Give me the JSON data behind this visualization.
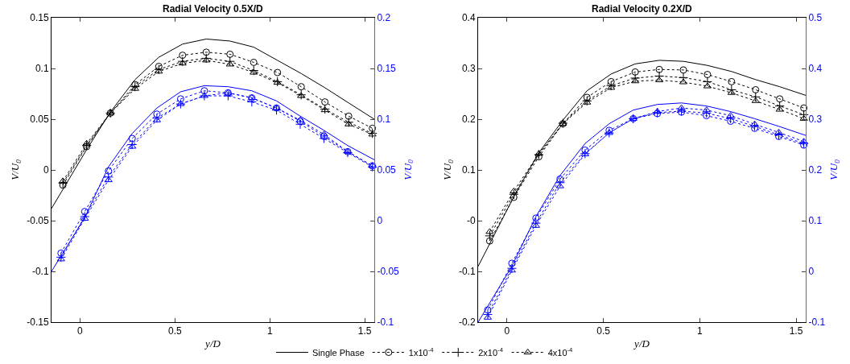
{
  "chart_data": [
    {
      "type": "line",
      "title": "Radial Velocity 0.5X/D",
      "xlabel": "y/D",
      "ylabel": "V/U$_{0}$",
      "y2label": "V/U$_{0}$",
      "legend": "bottom",
      "xlim": [
        -0.15,
        1.55
      ],
      "xticks": [
        0,
        0.5,
        1,
        1.5
      ],
      "ylim": [
        -0.15,
        0.15
      ],
      "yticks": [
        -0.15,
        -0.1,
        -0.05,
        0,
        0.05,
        0.1,
        0.15
      ],
      "y2lim": [
        -0.1,
        0.2
      ],
      "y2ticks": [
        -0.1,
        -0.05,
        0,
        0.05,
        0.1,
        0.15,
        0.2
      ],
      "series": [
        {
          "name": "Single Phase",
          "color": "#000000",
          "marker": "none",
          "line_style": "solid",
          "x": [
            -0.15,
            0.035,
            0.16,
            0.29,
            0.415,
            0.54,
            0.665,
            0.79,
            0.915,
            1.04,
            1.165,
            1.29,
            1.415,
            1.55
          ],
          "values": [
            -0.038,
            0.02,
            0.057,
            0.089,
            0.111,
            0.124,
            0.129,
            0.127,
            0.121,
            0.108,
            0.095,
            0.081,
            0.066,
            0.05
          ]
        },
        {
          "name": "1x10$^{-4}$",
          "color": "#000000",
          "marker": "circle",
          "line_style": "dotted",
          "x": [
            -0.09,
            0.035,
            0.16,
            0.29,
            0.415,
            0.54,
            0.665,
            0.79,
            0.915,
            1.04,
            1.165,
            1.29,
            1.415,
            1.54
          ],
          "values": [
            -0.015,
            0.023,
            0.056,
            0.084,
            0.102,
            0.113,
            0.116,
            0.114,
            0.106,
            0.096,
            0.082,
            0.067,
            0.053,
            0.041
          ]
        },
        {
          "name": "2x10$^{-4}$",
          "color": "#000000",
          "marker": "cross",
          "line_style": "dotted",
          "x": [
            -0.09,
            0.035,
            0.16,
            0.29,
            0.415,
            0.54,
            0.665,
            0.79,
            0.915,
            1.04,
            1.165,
            1.29,
            1.415,
            1.54
          ],
          "values": [
            -0.013,
            0.024,
            0.056,
            0.082,
            0.099,
            0.107,
            0.11,
            0.107,
            0.098,
            0.087,
            0.074,
            0.06,
            0.047,
            0.036
          ]
        },
        {
          "name": "4x10$^{-4}$",
          "color": "#000000",
          "marker": "triangle",
          "line_style": "dotted",
          "x": [
            -0.09,
            0.035,
            0.16,
            0.29,
            0.415,
            0.54,
            0.665,
            0.79,
            0.915,
            1.04,
            1.165,
            1.29,
            1.415,
            1.54
          ],
          "values": [
            -0.011,
            0.026,
            0.056,
            0.08,
            0.097,
            0.105,
            0.108,
            0.104,
            0.096,
            0.086,
            0.073,
            0.059,
            0.045,
            0.035
          ]
        },
        {
          "color": "#0000ff",
          "axis": "y2",
          "marker": "none",
          "line_style": "solid",
          "x": [
            -0.15,
            0.025,
            0.15,
            0.275,
            0.405,
            0.53,
            0.655,
            0.78,
            0.905,
            1.035,
            1.16,
            1.285,
            1.41,
            1.55
          ],
          "values": [
            -0.05,
            0.003,
            0.053,
            0.086,
            0.111,
            0.127,
            0.133,
            0.132,
            0.128,
            0.118,
            0.103,
            0.089,
            0.074,
            0.06
          ]
        },
        {
          "color": "#0000ff",
          "axis": "y2",
          "marker": "circle",
          "line_style": "dotted",
          "x": [
            -0.1,
            0.025,
            0.15,
            0.275,
            0.405,
            0.53,
            0.655,
            0.78,
            0.905,
            1.035,
            1.16,
            1.285,
            1.41,
            1.54
          ],
          "values": [
            -0.032,
            0.009,
            0.049,
            0.081,
            0.105,
            0.12,
            0.128,
            0.126,
            0.121,
            0.111,
            0.098,
            0.083,
            0.068,
            0.054
          ]
        },
        {
          "color": "#0000ff",
          "axis": "y2",
          "marker": "cross",
          "line_style": "dotted",
          "x": [
            -0.1,
            0.025,
            0.15,
            0.275,
            0.405,
            0.53,
            0.655,
            0.78,
            0.905,
            1.035,
            1.16,
            1.285,
            1.41,
            1.54
          ],
          "values": [
            -0.036,
            0.004,
            0.043,
            0.075,
            0.101,
            0.115,
            0.123,
            0.123,
            0.117,
            0.109,
            0.095,
            0.081,
            0.067,
            0.053
          ]
        },
        {
          "color": "#0000ff",
          "axis": "y2",
          "marker": "triangle",
          "line_style": "dotted",
          "x": [
            -0.1,
            0.025,
            0.15,
            0.275,
            0.405,
            0.53,
            0.655,
            0.78,
            0.905,
            1.035,
            1.16,
            1.285,
            1.41,
            1.54
          ],
          "values": [
            -0.038,
            0.002,
            0.04,
            0.073,
            0.099,
            0.115,
            0.123,
            0.126,
            0.121,
            0.111,
            0.099,
            0.085,
            0.068,
            0.054
          ]
        }
      ]
    },
    {
      "type": "line",
      "title": "Radial Velocity 0.2X/D",
      "xlabel": "y/D",
      "ylabel": "V/U$_{0}$",
      "y2label": "V/U$_{0}$",
      "xlim": [
        -0.15,
        1.55
      ],
      "xticks": [
        0,
        0.5,
        1,
        1.5
      ],
      "ylim": [
        -0.2,
        0.4
      ],
      "yticks": [
        -0.2,
        -0.1,
        {
          "value": 0,
          "label": "-0"
        },
        0.1,
        0.2,
        0.3,
        0.4
      ],
      "y2lim": [
        -0.1,
        0.5
      ],
      "y2ticks": [
        -0.1,
        0,
        0.1,
        0.2,
        0.3,
        0.4,
        0.5
      ],
      "series": [
        {
          "color": "#000000",
          "marker": "none",
          "line_style": "solid",
          "x": [
            -0.15,
            0.035,
            0.165,
            0.29,
            0.415,
            0.54,
            0.665,
            0.79,
            0.915,
            1.04,
            1.165,
            1.29,
            1.415,
            1.55
          ],
          "values": [
            -0.09,
            0.047,
            0.134,
            0.198,
            0.256,
            0.289,
            0.309,
            0.316,
            0.314,
            0.306,
            0.294,
            0.278,
            0.264,
            0.247
          ]
        },
        {
          "color": "#000000",
          "marker": "circle",
          "line_style": "dotted",
          "x": [
            -0.09,
            0.035,
            0.165,
            0.29,
            0.415,
            0.54,
            0.665,
            0.79,
            0.915,
            1.04,
            1.165,
            1.29,
            1.415,
            1.54
          ],
          "values": [
            -0.04,
            0.046,
            0.126,
            0.191,
            0.243,
            0.274,
            0.293,
            0.298,
            0.297,
            0.288,
            0.274,
            0.258,
            0.24,
            0.222
          ]
        },
        {
          "color": "#000000",
          "marker": "cross",
          "line_style": "dotted",
          "x": [
            -0.09,
            0.035,
            0.165,
            0.29,
            0.415,
            0.54,
            0.665,
            0.79,
            0.915,
            1.04,
            1.165,
            1.29,
            1.415,
            1.54
          ],
          "values": [
            -0.03,
            0.052,
            0.13,
            0.192,
            0.236,
            0.266,
            0.281,
            0.285,
            0.282,
            0.274,
            0.258,
            0.244,
            0.226,
            0.209
          ]
        },
        {
          "color": "#000000",
          "marker": "triangle",
          "line_style": "dotted",
          "x": [
            -0.09,
            0.035,
            0.165,
            0.29,
            0.415,
            0.54,
            0.665,
            0.79,
            0.915,
            1.04,
            1.165,
            1.29,
            1.415,
            1.54
          ],
          "values": [
            -0.022,
            0.058,
            0.132,
            0.191,
            0.233,
            0.262,
            0.275,
            0.277,
            0.273,
            0.265,
            0.252,
            0.236,
            0.219,
            0.201
          ]
        },
        {
          "color": "#0000ff",
          "axis": "y2",
          "marker": "none",
          "line_style": "solid",
          "x": [
            -0.15,
            0.025,
            0.15,
            0.275,
            0.405,
            0.53,
            0.655,
            0.78,
            0.905,
            1.035,
            1.16,
            1.285,
            1.41,
            1.55
          ],
          "values": [
            -0.1,
            0.01,
            0.108,
            0.189,
            0.252,
            0.291,
            0.318,
            0.329,
            0.332,
            0.326,
            0.315,
            0.301,
            0.286,
            0.268
          ]
        },
        {
          "color": "#0000ff",
          "axis": "y2",
          "marker": "circle",
          "line_style": "dotted",
          "x": [
            -0.1,
            0.025,
            0.15,
            0.275,
            0.405,
            0.53,
            0.655,
            0.78,
            0.905,
            1.035,
            1.16,
            1.285,
            1.41,
            1.54
          ],
          "values": [
            -0.076,
            0.016,
            0.105,
            0.182,
            0.239,
            0.278,
            0.301,
            0.311,
            0.314,
            0.307,
            0.296,
            0.282,
            0.266,
            0.249
          ]
        },
        {
          "color": "#0000ff",
          "axis": "y2",
          "marker": "cross",
          "line_style": "dotted",
          "x": [
            -0.1,
            0.025,
            0.15,
            0.275,
            0.405,
            0.53,
            0.655,
            0.78,
            0.905,
            1.035,
            1.16,
            1.285,
            1.41,
            1.54
          ],
          "values": [
            -0.085,
            0.006,
            0.095,
            0.175,
            0.232,
            0.273,
            0.301,
            0.313,
            0.316,
            0.312,
            0.301,
            0.286,
            0.269,
            0.252
          ]
        },
        {
          "color": "#0000ff",
          "axis": "y2",
          "marker": "triangle",
          "line_style": "dotted",
          "x": [
            -0.1,
            0.025,
            0.15,
            0.275,
            0.405,
            0.53,
            0.655,
            0.78,
            0.905,
            1.035,
            1.16,
            1.285,
            1.41,
            1.54
          ],
          "values": [
            -0.091,
            0.002,
            0.09,
            0.168,
            0.231,
            0.273,
            0.301,
            0.315,
            0.322,
            0.318,
            0.307,
            0.29,
            0.274,
            0.256
          ]
        }
      ]
    }
  ]
}
